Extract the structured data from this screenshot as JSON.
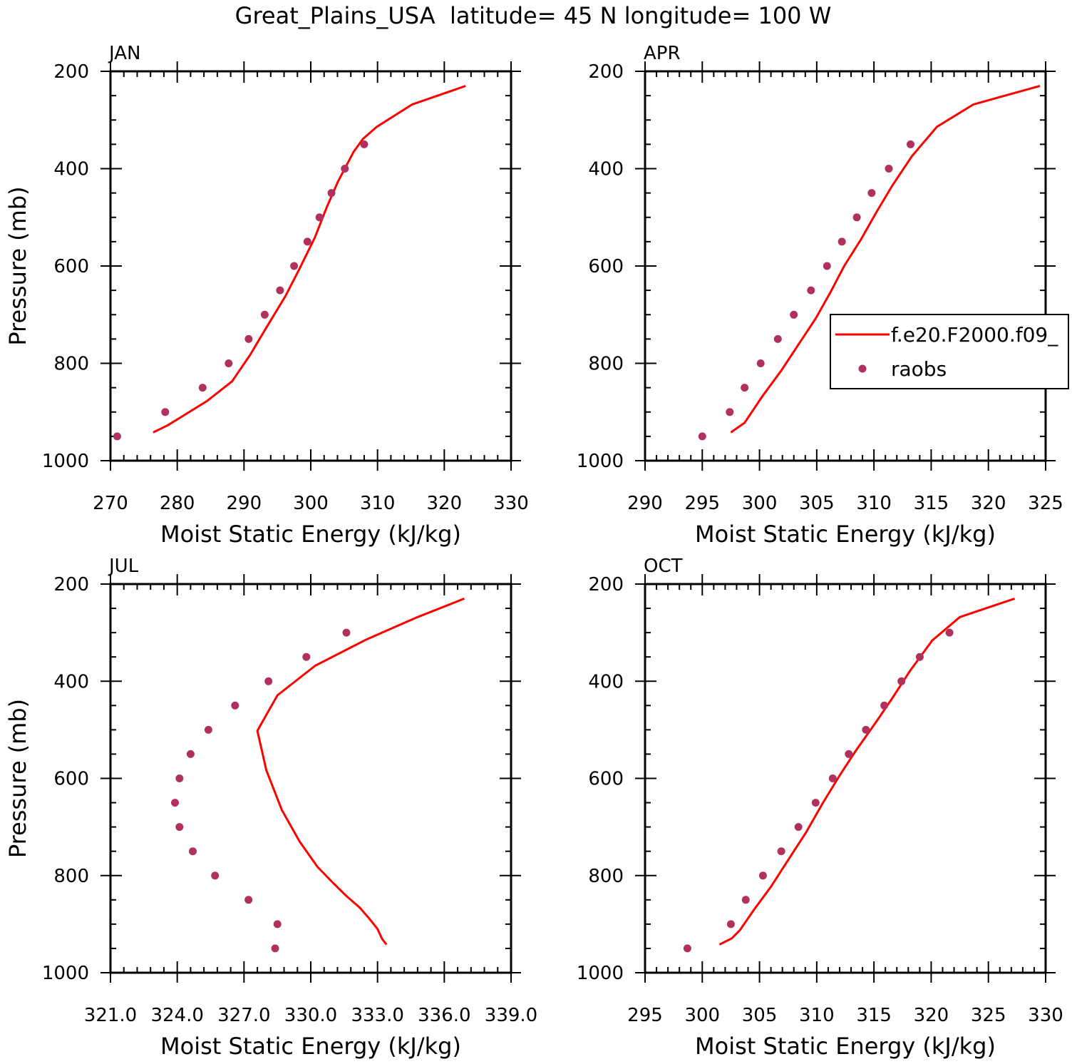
{
  "figure_title": "Great_Plains_USA  latitude= 45 N longitude= 100 W",
  "colors": {
    "model": "#ff0000",
    "raobs": "#b03060",
    "axes": "#000000"
  },
  "legend": {
    "placement": "right side of APR panel",
    "model_label": "f.e20.F2000.f09_",
    "raobs_label": "raobs"
  },
  "chart_data": [
    {
      "type": "line",
      "panel": "JAN",
      "title": "JAN",
      "xlabel": "Moist Static Energy (kJ/kg)",
      "ylabel": "Pressure (mb)",
      "xlim": [
        270,
        330
      ],
      "ylim": [
        1000,
        200
      ],
      "xticks": [
        270,
        280,
        290,
        300,
        310,
        320,
        330
      ],
      "xtick_labels": [
        "270",
        "280",
        "290",
        "300",
        "310",
        "320",
        "330"
      ],
      "yticks": [
        200,
        400,
        600,
        800,
        1000
      ],
      "ytick_labels": [
        "200",
        "400",
        "600",
        "800",
        "1000"
      ],
      "series": [
        {
          "name": "f.e20.F2000.f09_",
          "kind": "line",
          "points": [
            [
              276.4,
              942
            ],
            [
              278.6,
              927
            ],
            [
              284.5,
              877
            ],
            [
              288.2,
              837
            ],
            [
              290.9,
              783
            ],
            [
              293.2,
              730
            ],
            [
              296.2,
              662
            ],
            [
              298.3,
              606
            ],
            [
              300.6,
              542
            ],
            [
              302.4,
              479
            ],
            [
              304.1,
              426
            ],
            [
              306.4,
              366
            ],
            [
              307.8,
              339
            ],
            [
              309.9,
              314
            ],
            [
              315.2,
              268
            ],
            [
              323.2,
              230
            ]
          ]
        },
        {
          "name": "raobs",
          "kind": "scatter",
          "points": [
            [
              271.0,
              950
            ],
            [
              278.2,
              900
            ],
            [
              283.8,
              850
            ],
            [
              287.7,
              800
            ],
            [
              290.7,
              750
            ],
            [
              293.1,
              700
            ],
            [
              295.4,
              650
            ],
            [
              297.5,
              600
            ],
            [
              299.5,
              550
            ],
            [
              301.3,
              500
            ],
            [
              303.1,
              450
            ],
            [
              305.1,
              400
            ],
            [
              308.0,
              350
            ]
          ]
        }
      ]
    },
    {
      "type": "line",
      "panel": "APR",
      "title": "APR",
      "xlabel": "Moist Static Energy (kJ/kg)",
      "ylabel": "",
      "xlim": [
        290,
        325
      ],
      "ylim": [
        1000,
        200
      ],
      "xticks": [
        290,
        295,
        300,
        305,
        310,
        315,
        320,
        325
      ],
      "xtick_labels": [
        "290",
        "295",
        "300",
        "305",
        "310",
        "315",
        "320",
        "325"
      ],
      "yticks": [
        200,
        400,
        600,
        800,
        1000
      ],
      "ytick_labels": [
        "200",
        "400",
        "600",
        "800",
        "1000"
      ],
      "series": [
        {
          "name": "f.e20.F2000.f09_",
          "kind": "line",
          "points": [
            [
              297.5,
              942
            ],
            [
              298.7,
              922
            ],
            [
              300.3,
              866
            ],
            [
              301.9,
              815
            ],
            [
              303.3,
              765
            ],
            [
              304.9,
              708
            ],
            [
              306.2,
              654
            ],
            [
              307.4,
              600
            ],
            [
              308.9,
              544
            ],
            [
              310.2,
              490
            ],
            [
              311.6,
              435
            ],
            [
              313.3,
              375
            ],
            [
              315.5,
              314
            ],
            [
              318.7,
              268
            ],
            [
              324.5,
              230
            ]
          ]
        },
        {
          "name": "raobs",
          "kind": "scatter",
          "points": [
            [
              295.0,
              950
            ],
            [
              297.4,
              900
            ],
            [
              298.7,
              850
            ],
            [
              300.1,
              800
            ],
            [
              301.6,
              750
            ],
            [
              303.0,
              700
            ],
            [
              304.5,
              650
            ],
            [
              305.9,
              600
            ],
            [
              307.2,
              550
            ],
            [
              308.5,
              500
            ],
            [
              309.8,
              450
            ],
            [
              311.3,
              400
            ],
            [
              313.2,
              350
            ]
          ]
        }
      ]
    },
    {
      "type": "line",
      "panel": "JUL",
      "title": "JUL",
      "xlabel": "Moist Static Energy (kJ/kg)",
      "ylabel": "Pressure (mb)",
      "xlim": [
        321,
        339
      ],
      "ylim": [
        1000,
        200
      ],
      "xticks": [
        321,
        324,
        327,
        330,
        333,
        336,
        339
      ],
      "xtick_labels": [
        "321.0",
        "324.0",
        "327.0",
        "330.0",
        "333.0",
        "336.0",
        "339.0"
      ],
      "yticks": [
        200,
        400,
        600,
        800,
        1000
      ],
      "ytick_labels": [
        "200",
        "400",
        "600",
        "800",
        "1000"
      ],
      "series": [
        {
          "name": "f.e20.F2000.f09_",
          "kind": "line",
          "points": [
            [
              333.4,
              942
            ],
            [
              333.2,
              930
            ],
            [
              333.0,
              910
            ],
            [
              332.6,
              887
            ],
            [
              332.2,
              866
            ],
            [
              331.6,
              842
            ],
            [
              331.0,
              815
            ],
            [
              330.3,
              782
            ],
            [
              329.5,
              730
            ],
            [
              328.7,
              665
            ],
            [
              328.0,
              583
            ],
            [
              327.6,
              502
            ],
            [
              328.5,
              429
            ],
            [
              330.2,
              368
            ],
            [
              332.5,
              314
            ],
            [
              334.8,
              268
            ],
            [
              336.9,
              230
            ]
          ]
        },
        {
          "name": "raobs",
          "kind": "scatter",
          "points": [
            [
              328.4,
              950
            ],
            [
              328.5,
              900
            ],
            [
              327.2,
              850
            ],
            [
              325.7,
              800
            ],
            [
              324.7,
              750
            ],
            [
              324.1,
              700
            ],
            [
              323.9,
              650
            ],
            [
              324.1,
              600
            ],
            [
              324.6,
              550
            ],
            [
              325.4,
              500
            ],
            [
              326.6,
              450
            ],
            [
              328.1,
              400
            ],
            [
              329.8,
              350
            ],
            [
              331.6,
              300
            ]
          ]
        }
      ]
    },
    {
      "type": "line",
      "panel": "OCT",
      "title": "OCT",
      "xlabel": "Moist Static Energy (kJ/kg)",
      "ylabel": "",
      "xlim": [
        295,
        330
      ],
      "ylim": [
        1000,
        200
      ],
      "xticks": [
        295,
        300,
        305,
        310,
        315,
        320,
        325,
        330
      ],
      "xtick_labels": [
        "295",
        "300",
        "305",
        "310",
        "315",
        "320",
        "325",
        "330"
      ],
      "yticks": [
        200,
        400,
        600,
        800,
        1000
      ],
      "ytick_labels": [
        "200",
        "400",
        "600",
        "800",
        "1000"
      ],
      "series": [
        {
          "name": "f.e20.F2000.f09_",
          "kind": "line",
          "points": [
            [
              301.5,
              942
            ],
            [
              302.6,
              929
            ],
            [
              303.3,
              912
            ],
            [
              304.5,
              871
            ],
            [
              306.0,
              823
            ],
            [
              307.5,
              768
            ],
            [
              309.1,
              710
            ],
            [
              310.5,
              652
            ],
            [
              312.0,
              594
            ],
            [
              313.5,
              540
            ],
            [
              315.1,
              487
            ],
            [
              316.6,
              435
            ],
            [
              318.2,
              377
            ],
            [
              320.1,
              316
            ],
            [
              322.5,
              268
            ],
            [
              327.3,
              230
            ]
          ]
        },
        {
          "name": "raobs",
          "kind": "scatter",
          "points": [
            [
              298.7,
              950
            ],
            [
              302.5,
              900
            ],
            [
              303.8,
              850
            ],
            [
              305.3,
              800
            ],
            [
              306.9,
              750
            ],
            [
              308.4,
              700
            ],
            [
              309.9,
              650
            ],
            [
              311.4,
              600
            ],
            [
              312.8,
              550
            ],
            [
              314.3,
              500
            ],
            [
              315.9,
              450
            ],
            [
              317.4,
              400
            ],
            [
              319.0,
              350
            ],
            [
              321.6,
              300
            ]
          ]
        }
      ]
    }
  ]
}
